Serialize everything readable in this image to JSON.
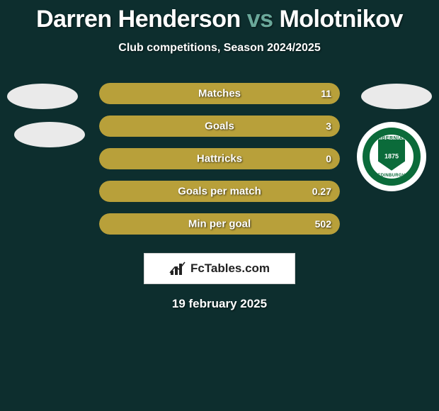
{
  "title": {
    "player1": "Darren Henderson",
    "vs": "vs",
    "player2": "Molotnikov"
  },
  "subtitle": "Club competitions, Season 2024/2025",
  "stats": {
    "bar_bg_color": "#1a3838",
    "fill_color_right": "#b8a03a",
    "fill_color_left": "#b8a03a",
    "rows": [
      {
        "label": "Matches",
        "right_value": "11",
        "right_fill_pct": 100,
        "left_fill_pct": 0
      },
      {
        "label": "Goals",
        "right_value": "3",
        "right_fill_pct": 100,
        "left_fill_pct": 0
      },
      {
        "label": "Hattricks",
        "right_value": "0",
        "right_fill_pct": 100,
        "left_fill_pct": 0
      },
      {
        "label": "Goals per match",
        "right_value": "0.27",
        "right_fill_pct": 100,
        "left_fill_pct": 0
      },
      {
        "label": "Min per goal",
        "right_value": "502",
        "right_fill_pct": 100,
        "left_fill_pct": 0
      }
    ]
  },
  "badges": {
    "placeholder_bg": "#eaeaea",
    "club": {
      "ring_color": "#0b6b3a",
      "text_top": "HIBERNIAN",
      "text_bottom": "EDINBURGH",
      "year": "1875"
    }
  },
  "brand": {
    "name": "FcTables.com",
    "box_bg": "#ffffff",
    "box_border": "#d0d0d0",
    "icon_color": "#222222"
  },
  "date": "19 february 2025",
  "colors": {
    "page_bg": "#0d2e2e",
    "text": "#ffffff",
    "vs_color": "#6aa89a"
  }
}
